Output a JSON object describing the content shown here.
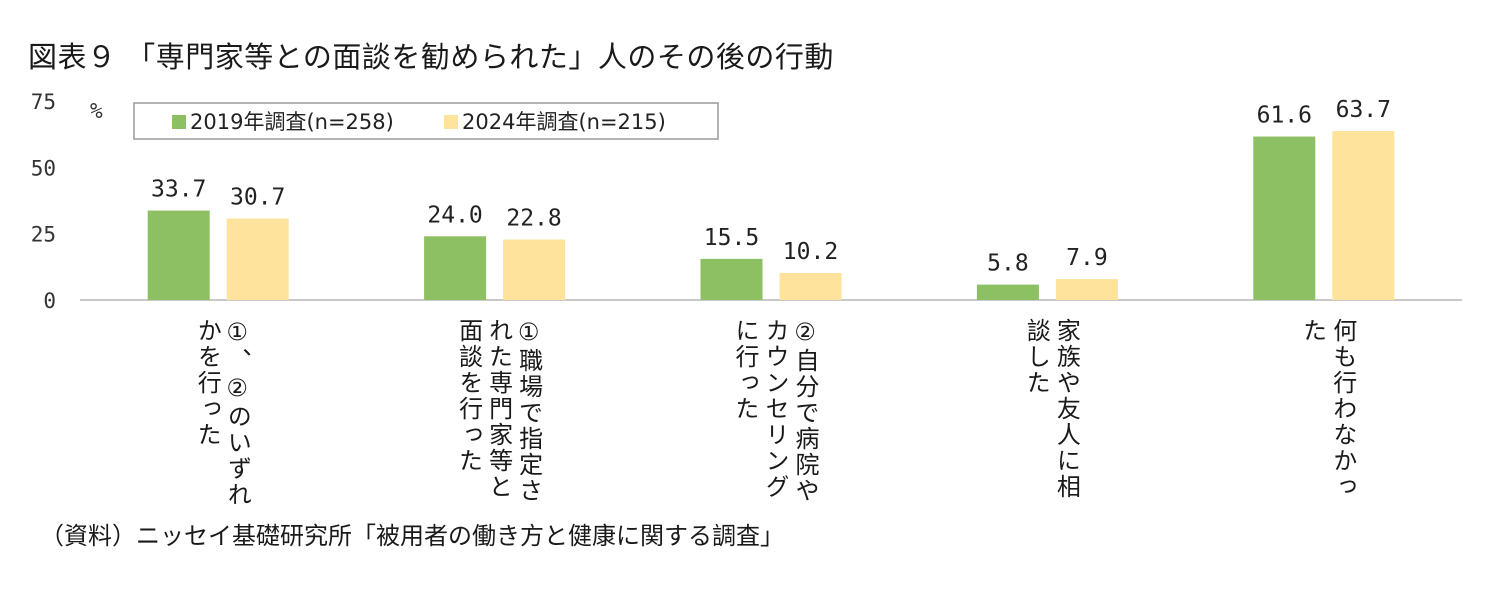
{
  "title": "図表９ 「専門家等との面談を勧められた」人のその後の行動",
  "source": "（資料）ニッセイ基礎研究所「被用者の働き方と健康に関する調査」",
  "colors": {
    "series1": "#8cc063",
    "series2": "#fde39c",
    "axis": "#c8c8c8",
    "legend_border": "#9a9a9a"
  },
  "chart_data": {
    "type": "bar",
    "unit_label": "%",
    "ylim": [
      0,
      75
    ],
    "yticks": [
      0,
      25,
      50,
      75
    ],
    "grid": false,
    "legend_position": "top",
    "categories": [
      [
        "①、②のいずれ",
        "かを行った"
      ],
      [
        "①職場で指定さ",
        "れた専門家等と",
        "面談を行った"
      ],
      [
        "②自分で病院や",
        "カウンセリング",
        "に行った"
      ],
      [
        "家族や友人に相",
        "談した"
      ],
      [
        "何も行わなかっ",
        "た"
      ]
    ],
    "series": [
      {
        "name": "2019年調査(n=258)",
        "values": [
          33.7,
          24.0,
          15.5,
          5.8,
          61.6
        ],
        "labels": [
          "33.7",
          "24.0",
          "15.5",
          "5.8",
          "61.6"
        ]
      },
      {
        "name": "2024年調査(n=215)",
        "values": [
          30.7,
          22.8,
          10.2,
          7.9,
          63.7
        ],
        "labels": [
          "30.7",
          "22.8",
          "10.2",
          "7.9",
          "63.7"
        ]
      }
    ]
  }
}
